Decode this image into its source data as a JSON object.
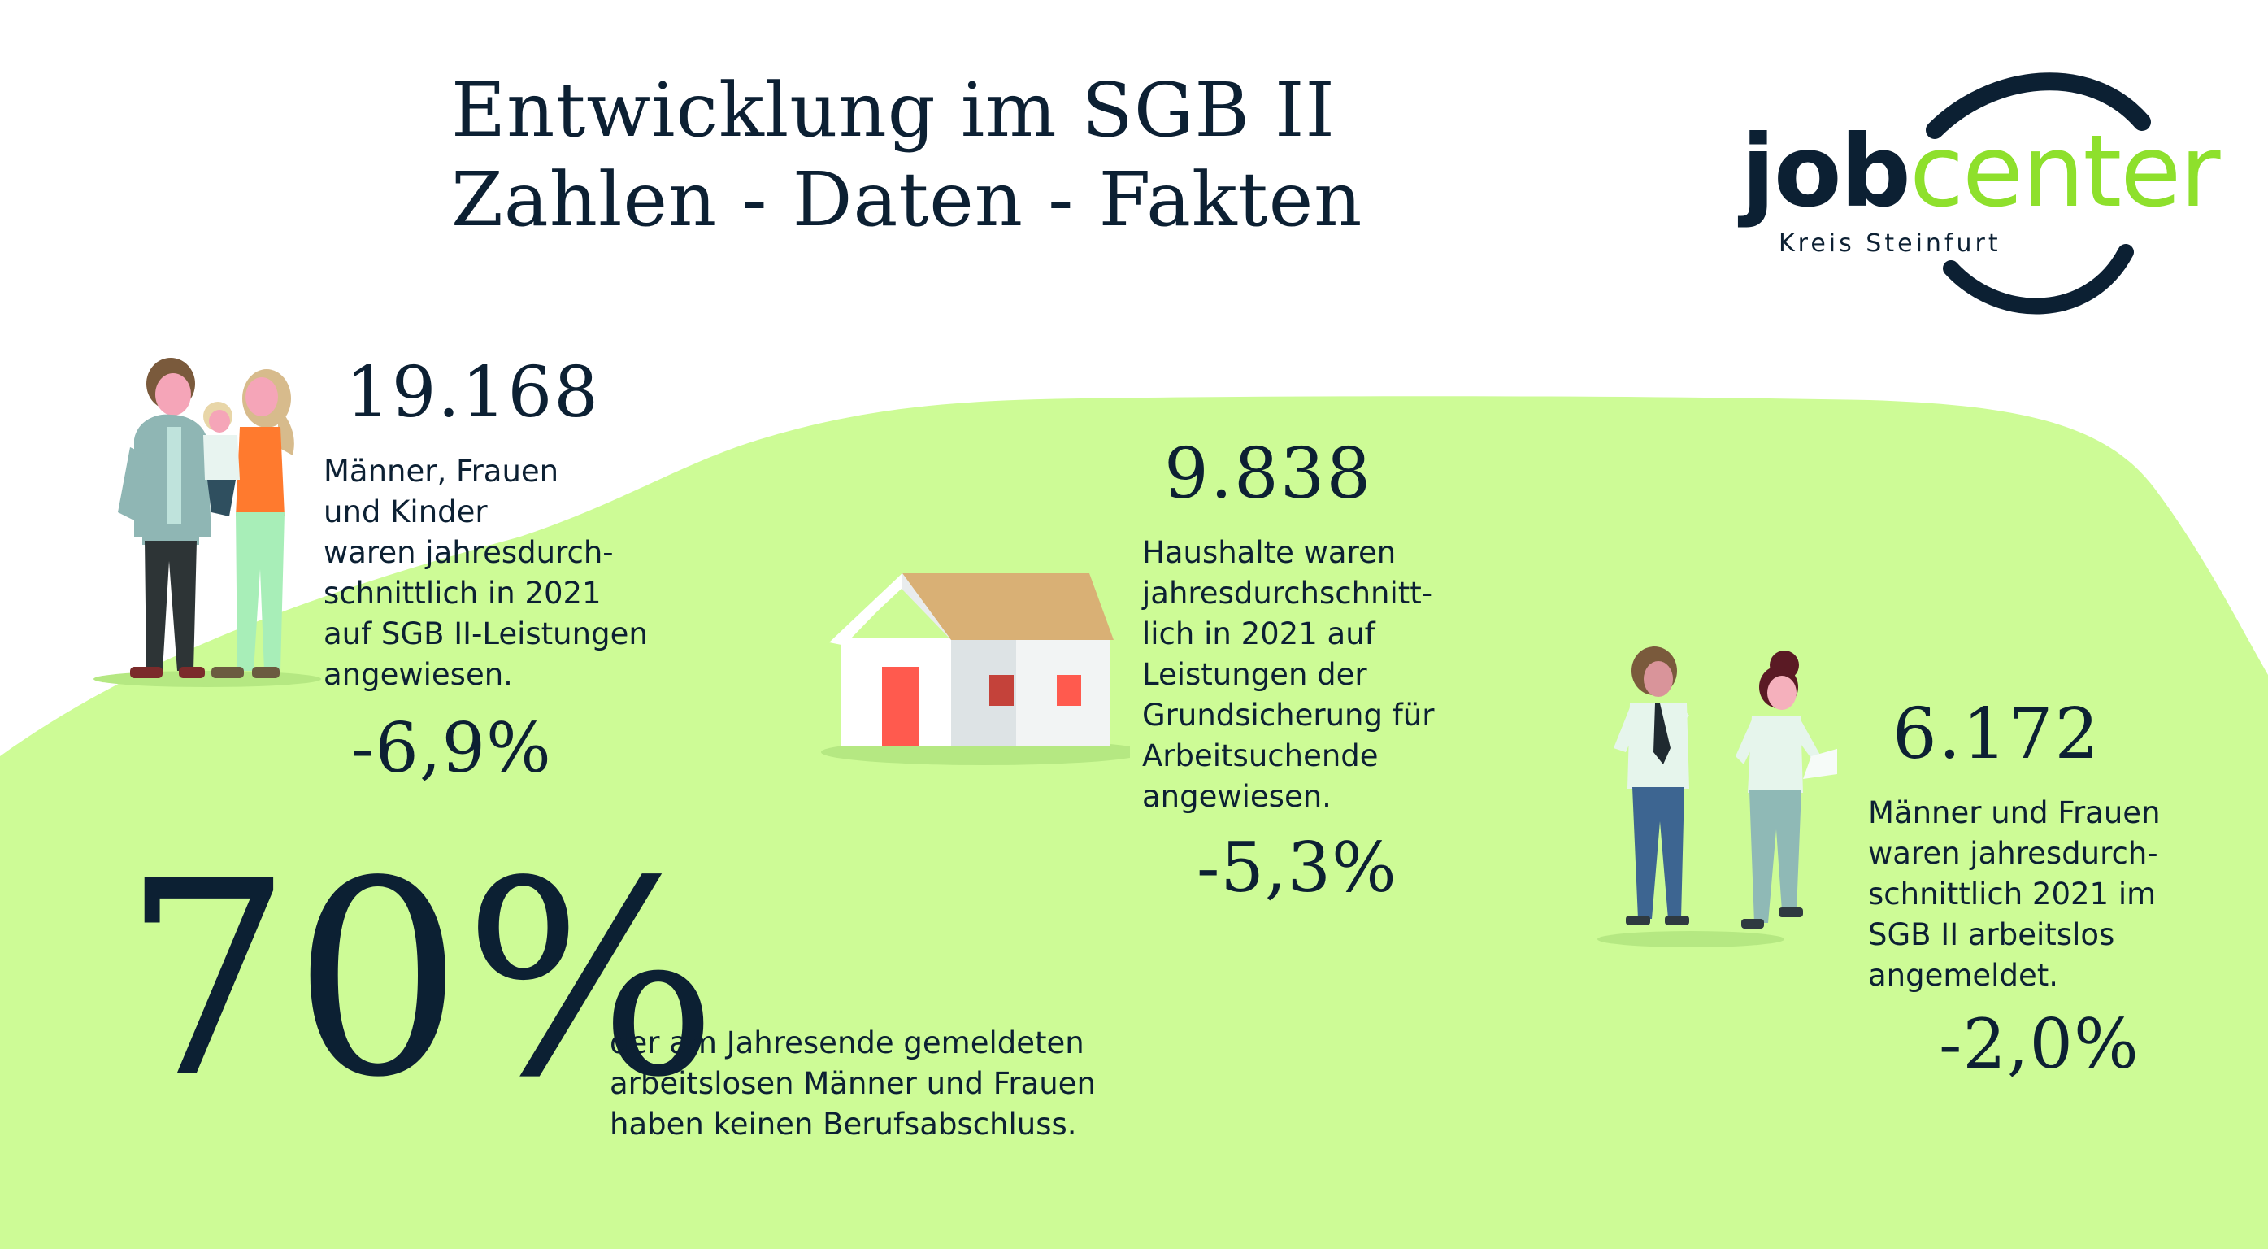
{
  "title": {
    "line1": "Entwicklung im SGB II",
    "line2": "Zahlen - Daten - Fakten"
  },
  "logo": {
    "word_part1": "job",
    "word_part2": "center",
    "subtitle": "Kreis Steinfurt",
    "colors": {
      "dark": "#0c2033",
      "green": "#8ee02c"
    }
  },
  "stats": {
    "persons": {
      "value": "19.168",
      "lines": [
        "Männer, Frauen",
        "und Kinder",
        "waren jahresdurch-",
        "schnittlich in 2021",
        "auf SGB II-Leistungen",
        "angewiesen."
      ],
      "change": "-6,9%"
    },
    "households": {
      "value": "9.838",
      "lines": [
        "Haushalte waren",
        "jahresdurchschnitt-",
        "lich in 2021 auf",
        "Leistungen der",
        "Grundsicherung für",
        "Arbeitsuchende",
        "angewiesen."
      ],
      "change": "-5,3%"
    },
    "unemployed": {
      "value": "6.172",
      "lines": [
        "Männer und Frauen",
        "waren jahresdurch-",
        "schnittlich 2021 im",
        "SGB II arbeitslos",
        "angemeldet."
      ],
      "change": "-2,0%"
    },
    "no_qualification": {
      "value": "70%",
      "lines": [
        "der am Jahresende gemeldeten",
        "arbeitslosen Männer und Frauen",
        "haben keinen Berufsabschluss."
      ]
    }
  },
  "colors": {
    "background": "#ffffff",
    "hill_green": "#cdfb96",
    "text_dark": "#0c2033"
  },
  "icons": {
    "family": "family-illustration",
    "house": "house-illustration",
    "workers": "workers-illustration"
  }
}
